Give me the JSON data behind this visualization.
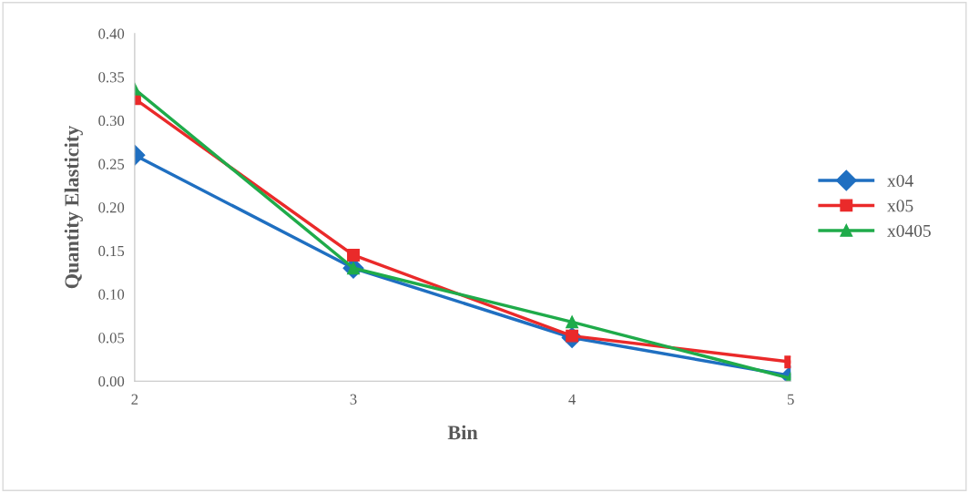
{
  "chart_data": {
    "type": "line",
    "xlabel": "Bin",
    "ylabel": "Quantity Elasticity",
    "categories": [
      "2",
      "3",
      "4",
      "5"
    ],
    "series": [
      {
        "name": "x04",
        "color": "#1f6fc1",
        "values": [
          0.26,
          0.13,
          0.05,
          0.006
        ],
        "marker": "diamond"
      },
      {
        "name": "x05",
        "color": "#ea2a2a",
        "values": [
          0.325,
          0.145,
          0.052,
          0.022
        ],
        "marker": "square"
      },
      {
        "name": "x0405",
        "color": "#1fab4a",
        "values": [
          0.336,
          0.13,
          0.068,
          0.003
        ],
        "marker": "triangle"
      }
    ],
    "ylim": [
      0,
      0.4
    ],
    "yticks": [
      {
        "value": 0,
        "label": "0.00"
      },
      {
        "value": 0.05,
        "label": "0.05"
      },
      {
        "value": 0.1,
        "label": "0.10"
      },
      {
        "value": 0.15,
        "label": "0.15"
      },
      {
        "value": 0.2,
        "label": "0.20"
      },
      {
        "value": 0.25,
        "label": "0.25"
      },
      {
        "value": 0.3,
        "label": "0.30"
      },
      {
        "value": 0.35,
        "label": "0.35"
      },
      {
        "value": 0.4,
        "label": "0.40"
      }
    ],
    "grid": false,
    "legend": "right",
    "line_style": "solid"
  }
}
